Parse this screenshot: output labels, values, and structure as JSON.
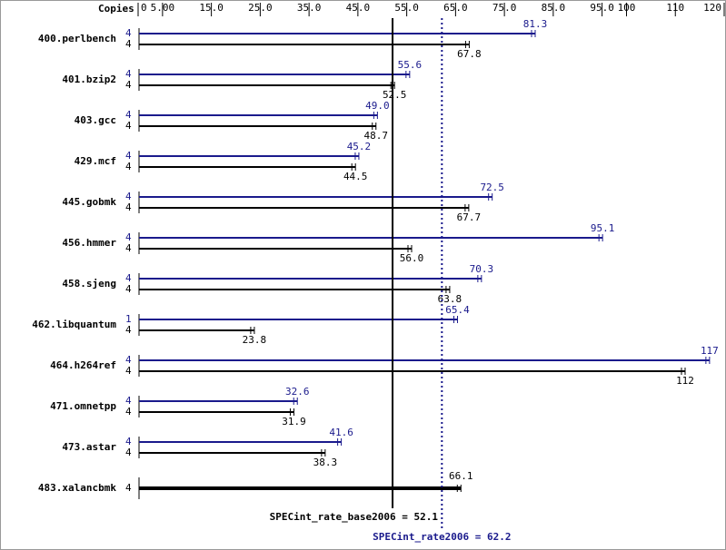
{
  "chart_data": {
    "type": "bar",
    "x_label": "Copies",
    "categories": [
      "400.perlbench",
      "401.bzip2",
      "403.gcc",
      "429.mcf",
      "445.gobmk",
      "456.hmmer",
      "458.sjeng",
      "462.libquantum",
      "464.h264ref",
      "471.omnetpp",
      "473.astar",
      "483.xalancbmk"
    ],
    "series": [
      {
        "color": "#1a1a8c",
        "values": [
          81.3,
          55.6,
          49.0,
          45.2,
          72.5,
          95.1,
          70.3,
          65.4,
          117,
          32.6,
          41.6,
          null
        ],
        "value_labels": [
          "81.3",
          "55.6",
          "49.0",
          "45.2",
          "72.5",
          "95.1",
          "70.3",
          "65.4",
          "117",
          "32.6",
          "41.6",
          null
        ],
        "copies": [
          4,
          4,
          4,
          4,
          4,
          4,
          4,
          1,
          4,
          4,
          4,
          null
        ]
      },
      {
        "color": "#000000",
        "values": [
          67.8,
          52.5,
          48.7,
          44.5,
          67.7,
          56.0,
          63.8,
          23.8,
          112,
          31.9,
          38.3,
          66.1
        ],
        "value_labels": [
          "67.8",
          "52.5",
          "48.7",
          "44.5",
          "67.7",
          "56.0",
          "63.8",
          "23.8",
          "112",
          "31.9",
          "38.3",
          "66.1"
        ],
        "copies": [
          4,
          4,
          4,
          4,
          4,
          4,
          4,
          4,
          4,
          4,
          4,
          4
        ]
      }
    ],
    "xlim": [
      0,
      120
    ],
    "xticks": [
      0,
      {
        "value": 5,
        "label": "5.00"
      },
      {
        "value": 15,
        "label": "15.0"
      },
      {
        "value": 25,
        "label": "25.0"
      },
      {
        "value": 35,
        "label": "35.0"
      },
      {
        "value": 45,
        "label": "45.0"
      },
      {
        "value": 55,
        "label": "55.0"
      },
      {
        "value": 65,
        "label": "65.0"
      },
      {
        "value": 75,
        "label": "75.0"
      },
      {
        "value": 85,
        "label": "85.0"
      },
      {
        "value": 95,
        "label": "95.0"
      },
      100,
      110,
      120
    ],
    "base_mean": {
      "value": 52.1,
      "label": "SPECint_rate_base2006 = 52.1"
    },
    "peak_mean": {
      "value": 62.2,
      "label": "SPECint_rate2006 = 62.2"
    }
  }
}
